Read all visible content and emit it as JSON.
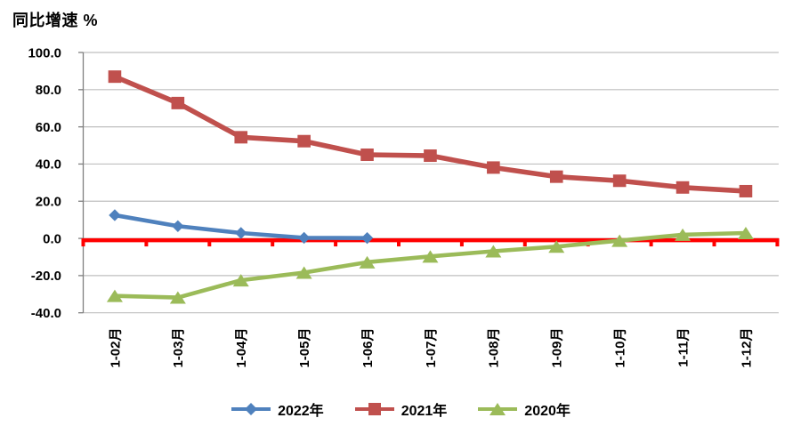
{
  "chart_data": {
    "type": "line",
    "title": "同比增速 %",
    "categories": [
      "1-02月",
      "1-03月",
      "1-04月",
      "1-05月",
      "1-06月",
      "1-07月",
      "1-08月",
      "1-09月",
      "1-10月",
      "1-11月",
      "1-12月"
    ],
    "series": [
      {
        "name": "2022年",
        "color": "#4F81BD",
        "marker": "diamond",
        "values": [
          12.5,
          6.6,
          2.9,
          0.3,
          0.2
        ]
      },
      {
        "name": "2021年",
        "color": "#C0504D",
        "marker": "square",
        "values": [
          87.0,
          72.8,
          54.4,
          52.3,
          45.0,
          44.5,
          38.1,
          33.2,
          31.0,
          27.4,
          25.4
        ]
      },
      {
        "name": "2020年",
        "color": "#9BBB59",
        "marker": "triangle",
        "values": [
          -30.9,
          -31.8,
          -22.5,
          -18.4,
          -12.8,
          -9.7,
          -6.9,
          -4.4,
          -1.2,
          2.0,
          2.9
        ]
      }
    ],
    "ylim": [
      -40,
      100
    ],
    "yticks": [
      "100.0",
      "80.0",
      "60.0",
      "40.0",
      "20.0",
      "0.0",
      "-20.0",
      "-40.0"
    ],
    "grid": "horizontal",
    "legend_position": "bottom",
    "colors": {
      "zero_line": "#FF0000",
      "gridline": "#BFBFBF",
      "axis_line": "#7F7F7F",
      "text": "#000000"
    }
  }
}
